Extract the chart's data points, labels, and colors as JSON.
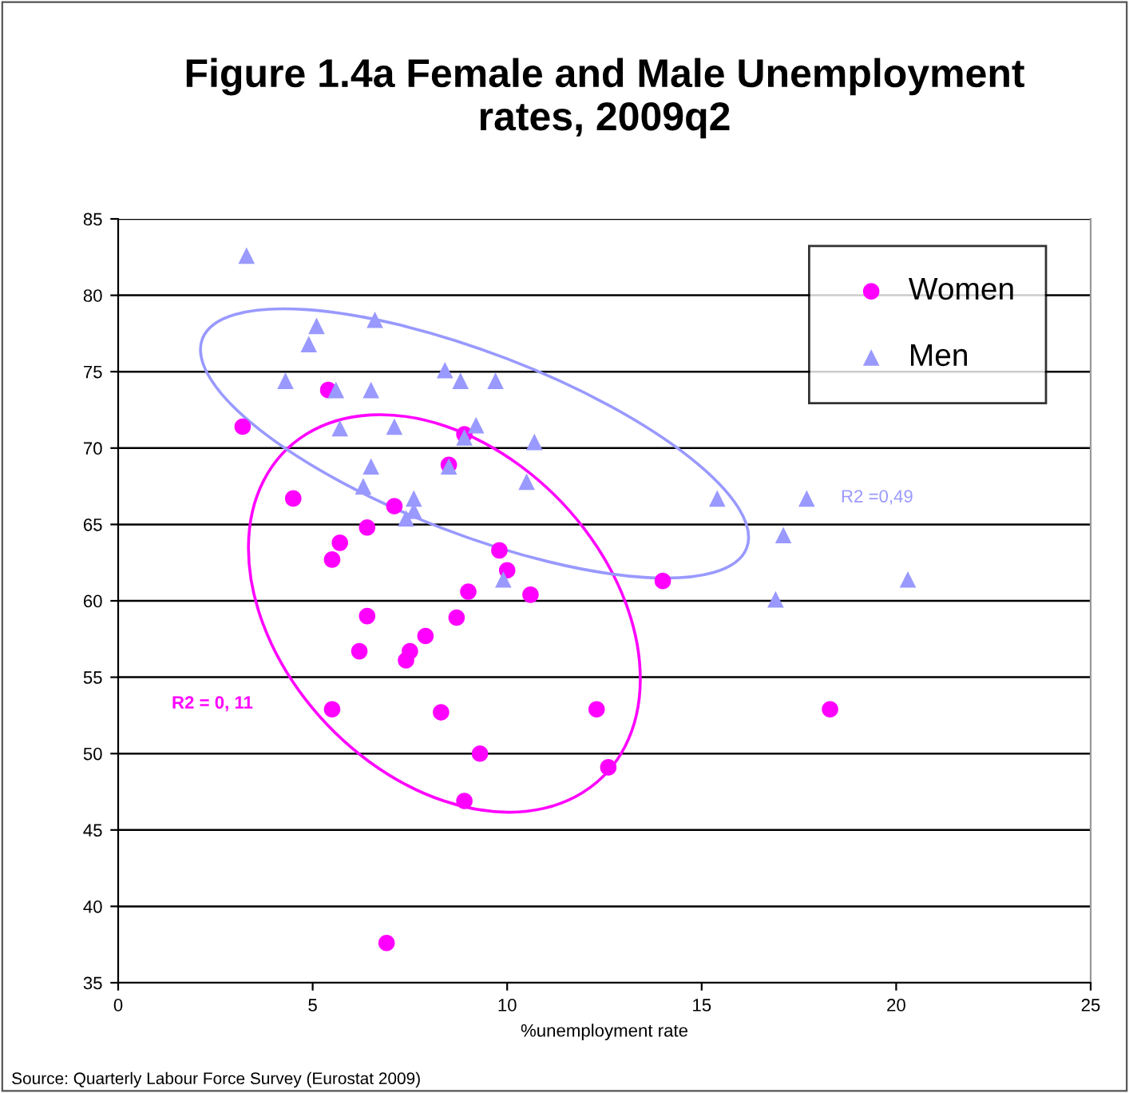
{
  "chart_data": {
    "type": "scatter",
    "title": "Figure 1.4a Female and Male Unemployment\nrates, 2009q2",
    "xlabel": "%unemployment rate",
    "xlim": [
      0,
      25
    ],
    "xticks": [
      0,
      5,
      10,
      15,
      20,
      25
    ],
    "ylim": [
      35,
      85
    ],
    "yticks": [
      35,
      40,
      45,
      50,
      55,
      60,
      65,
      70,
      75,
      80,
      85
    ],
    "grid": "y",
    "legend": "top right",
    "series": [
      {
        "name": "Women",
        "color": "#ff00ff",
        "marker": "circle",
        "x": [
          3.2,
          4.5,
          5.4,
          5.5,
          5.7,
          6.4,
          7.1,
          8.5,
          8.9,
          9.8,
          10.0,
          14.0,
          9.0,
          10.6,
          6.4,
          8.7,
          7.9,
          7.5,
          7.4,
          6.2,
          5.5,
          8.3,
          12.3,
          18.3,
          9.3,
          12.6,
          8.9,
          6.9
        ],
        "values": [
          71.4,
          66.7,
          73.8,
          62.7,
          63.8,
          64.8,
          66.2,
          68.9,
          70.9,
          63.3,
          62.0,
          61.3,
          60.6,
          60.4,
          59.0,
          58.9,
          57.7,
          56.7,
          56.1,
          56.7,
          52.9,
          52.7,
          52.9,
          52.9,
          50.0,
          49.1,
          46.9,
          37.6
        ]
      },
      {
        "name": "Men",
        "color": "#9999ff",
        "marker": "triangle",
        "x": [
          3.3,
          5.1,
          4.9,
          6.6,
          4.3,
          5.6,
          6.5,
          5.7,
          7.1,
          8.4,
          8.8,
          9.7,
          9.2,
          8.9,
          10.7,
          8.5,
          6.5,
          10.5,
          6.3,
          7.6,
          7.6,
          7.4,
          9.9,
          15.4,
          17.7,
          17.1,
          16.9,
          20.3
        ],
        "values": [
          82.6,
          78.0,
          76.8,
          78.4,
          74.4,
          73.8,
          73.8,
          71.3,
          71.4,
          75.1,
          74.4,
          74.4,
          71.5,
          70.7,
          70.4,
          68.8,
          68.8,
          67.8,
          67.5,
          66.7,
          65.9,
          65.4,
          61.4,
          66.7,
          66.7,
          64.3,
          60.1,
          61.4
        ]
      }
    ],
    "annotations": [
      "R2 =0,49",
      "R2 = 0, 11",
      "Source: Quarterly Labour Force Survey (Eurostat 2009)"
    ]
  }
}
